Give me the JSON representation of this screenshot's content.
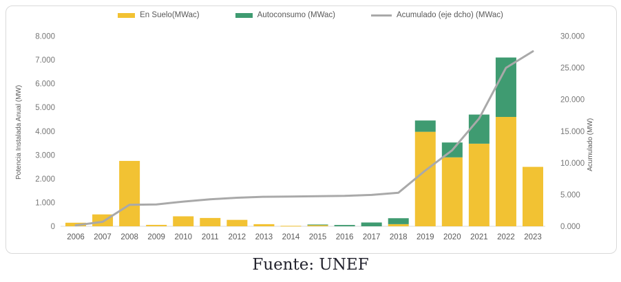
{
  "caption": "Fuente: UNEF",
  "chart_data": {
    "type": "bar",
    "stacked": true,
    "grid": false,
    "legend_position": "top",
    "categories": [
      "2006",
      "2007",
      "2008",
      "2009",
      "2010",
      "2011",
      "2012",
      "2013",
      "2014",
      "2015",
      "2016",
      "2017",
      "2018",
      "2019",
      "2020",
      "2021",
      "2022",
      "2023"
    ],
    "series": [
      {
        "name": "En Suelo(MWac)",
        "type": "bar",
        "axis": "left",
        "color": "#F2C233",
        "values": [
          150,
          500,
          2750,
          60,
          420,
          350,
          270,
          90,
          20,
          50,
          0,
          0,
          90,
          3975,
          2900,
          3475,
          4600,
          2500
        ]
      },
      {
        "name": "Autoconsumo (MWac)",
        "type": "bar",
        "axis": "left",
        "color": "#3F9B71",
        "values": [
          0,
          0,
          0,
          0,
          0,
          0,
          0,
          0,
          0,
          25,
          55,
          160,
          250,
          475,
          625,
          1225,
          2500,
          0
        ]
      },
      {
        "name": "Acumulado (eje dcho) (MWac)",
        "type": "line",
        "axis": "right",
        "color": "#A9A9A9",
        "values": [
          150,
          700,
          3400,
          3450,
          3900,
          4250,
          4500,
          4650,
          4700,
          4750,
          4800,
          4950,
          5300,
          8800,
          12000,
          17000,
          25000,
          27600
        ]
      }
    ],
    "left_axis": {
      "title": "Potencia Instalada Anual (MW)",
      "ticks": [
        "0",
        "1.000",
        "2.000",
        "3.000",
        "4.000",
        "5.000",
        "6.000",
        "7.000",
        "8.000"
      ],
      "tick_values": [
        0,
        1000,
        2000,
        3000,
        4000,
        5000,
        6000,
        7000,
        8000
      ],
      "min": 0,
      "max": 8000
    },
    "right_axis": {
      "title": "Acumulado (MW)",
      "ticks": [
        "0.000",
        "5.000",
        "10.000",
        "15.000",
        "20.000",
        "25.000",
        "30.000"
      ],
      "tick_values": [
        0,
        5000,
        10000,
        15000,
        20000,
        25000,
        30000
      ],
      "min": 0,
      "max": 30000
    },
    "colors": {
      "baseline": "#d9d9d9"
    }
  }
}
